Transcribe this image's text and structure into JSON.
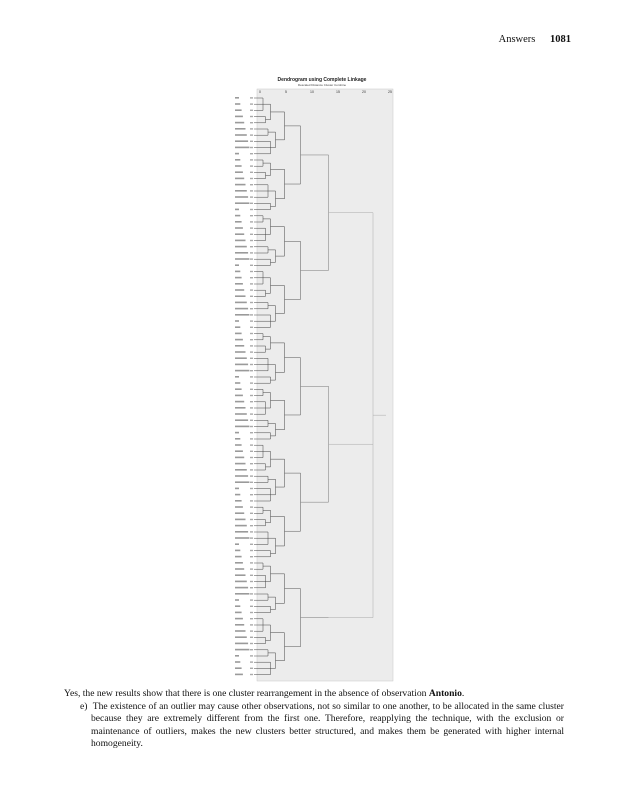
{
  "header": {
    "section": "Answers",
    "page_number": "1081"
  },
  "figure": {
    "title": "Dendrogram using Complete Linkage",
    "subtitle": "Rescaled Distance Cluster Combine",
    "scale_ticks": [
      "0",
      "5",
      "10",
      "15",
      "20",
      "25"
    ]
  },
  "text": {
    "line1_prefix": "Yes, the new results show that there is one cluster rearrangement in the absence of observation ",
    "line1_bold": "Antonio",
    "line1_suffix": ".",
    "item_label": "e)",
    "item_text": "The existence of an outlier may cause other observations, not so similar to one another, to be allocated in the same cluster because they are extremely different from the first one. Therefore, reapplying the technique, with the exclusion or maintenance of outliers, makes the new clusters better structured, and makes them be generated with higher internal homogeneity."
  }
}
